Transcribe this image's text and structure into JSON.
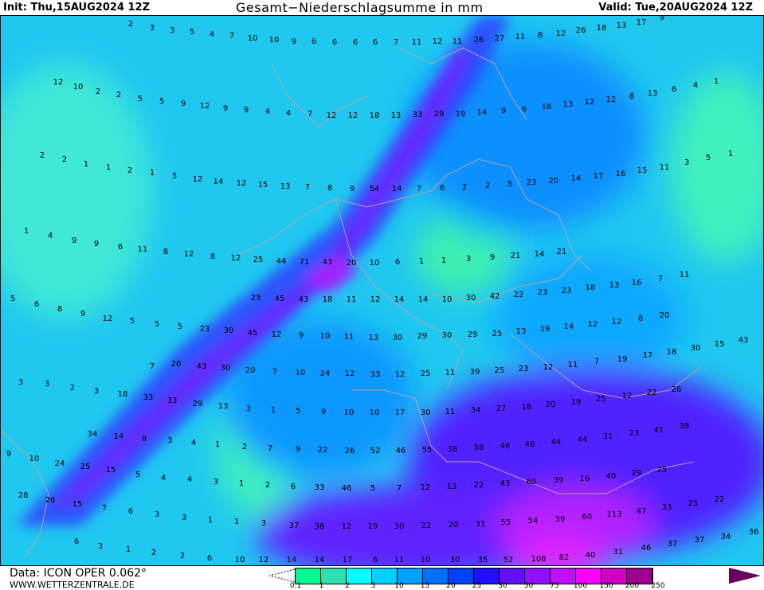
{
  "header": {
    "init": "Init: Thu,15AUG2024 12Z",
    "title": "Gesamt−Niederschlagsumme in mm",
    "valid": "Valid: Tue,20AUG2024 12Z"
  },
  "footer": {
    "data_source": "Data: ICON OPER 0.062°",
    "website": "WWW.WETTERZENTRALE.DE"
  },
  "legend": {
    "unit": "mm",
    "ticks": [
      "0.1",
      "1",
      "2",
      "5",
      "10",
      "15",
      "20",
      "25",
      "30",
      "50",
      "75",
      "100",
      "150",
      "200",
      "250"
    ],
    "colors": [
      "#00f890",
      "#30e0b0",
      "#00ffff",
      "#00d0ff",
      "#00a0ff",
      "#0070ff",
      "#0040ff",
      "#2010ff",
      "#6010ff",
      "#9010ff",
      "#c010ff",
      "#ff00ff",
      "#d000c0",
      "#a00090",
      "#6a0060"
    ]
  },
  "map": {
    "colors": {
      "base": "#20c8f0",
      "green": "#40f0c0",
      "blue": "#1090ff",
      "deep": "#3030ff",
      "purple": "#8020ff",
      "magenta": "#e020ff",
      "borders": "#c8a0a0"
    },
    "labels": [
      "2",
      "3",
      "3",
      "5",
      "4",
      "7",
      "10",
      "10",
      "9",
      "6",
      "6",
      "6",
      "6",
      "7",
      "11",
      "12",
      "11",
      "26",
      "27",
      "11",
      "8",
      "12",
      "26",
      "18",
      "13",
      "17",
      "9",
      "12",
      "10",
      "2",
      "2",
      "5",
      "5",
      "9",
      "12",
      "9",
      "9",
      "4",
      "4",
      "7",
      "12",
      "12",
      "18",
      "13",
      "33",
      "29",
      "19",
      "14",
      "9",
      "6",
      "18",
      "13",
      "12",
      "12",
      "8",
      "13",
      "6",
      "4",
      "1",
      "2",
      "2",
      "1",
      "1",
      "2",
      "1",
      "5",
      "12",
      "14",
      "12",
      "15",
      "13",
      "7",
      "8",
      "9",
      "54",
      "14",
      "7",
      "6",
      "2",
      "2",
      "5",
      "23",
      "20",
      "14",
      "17",
      "16",
      "15",
      "11",
      "3",
      "5",
      "1",
      "1",
      "4",
      "9",
      "9",
      "6",
      "11",
      "8",
      "12",
      "8",
      "12",
      "25",
      "44",
      "71",
      "43",
      "20",
      "10",
      "6",
      "1",
      "1",
      "3",
      "9",
      "21",
      "14",
      "21",
      "5",
      "6",
      "8",
      "9",
      "12",
      "5",
      "5",
      "5",
      "23",
      "30",
      "45",
      "12",
      "9",
      "10",
      "11",
      "13",
      "30",
      "29",
      "30",
      "29",
      "25",
      "13",
      "19",
      "14",
      "12",
      "12",
      "8",
      "20",
      "23",
      "45",
      "43",
      "18",
      "11",
      "12",
      "14",
      "14",
      "10",
      "30",
      "42",
      "22",
      "23",
      "23",
      "18",
      "13",
      "16",
      "7",
      "11",
      "3",
      "3",
      "2",
      "3",
      "18",
      "33",
      "33",
      "29",
      "13",
      "3",
      "1",
      "5",
      "9",
      "10",
      "10",
      "17",
      "30",
      "11",
      "34",
      "27",
      "18",
      "20",
      "19",
      "25",
      "12",
      "22",
      "26",
      "7",
      "20",
      "43",
      "30",
      "20",
      "7",
      "10",
      "24",
      "12",
      "33",
      "12",
      "25",
      "11",
      "39",
      "25",
      "23",
      "12",
      "11",
      "7",
      "19",
      "17",
      "18",
      "30",
      "15",
      "43",
      "9",
      "10",
      "24",
      "25",
      "15",
      "5",
      "4",
      "4",
      "3",
      "1",
      "2",
      "6",
      "33",
      "46",
      "5",
      "7",
      "12",
      "13",
      "22",
      "43",
      "60",
      "39",
      "16",
      "40",
      "29",
      "25",
      "34",
      "14",
      "8",
      "3",
      "4",
      "1",
      "2",
      "7",
      "9",
      "22",
      "26",
      "52",
      "46",
      "55",
      "38",
      "58",
      "46",
      "46",
      "44",
      "44",
      "31",
      "23",
      "41",
      "38",
      "28",
      "26",
      "15",
      "7",
      "6",
      "3",
      "3",
      "1",
      "1",
      "3",
      "37",
      "38",
      "12",
      "19",
      "30",
      "22",
      "20",
      "31",
      "55",
      "54",
      "39",
      "60",
      "113",
      "47",
      "33",
      "25",
      "22",
      "6",
      "3",
      "1",
      "2",
      "2",
      "6",
      "10",
      "12",
      "14",
      "14",
      "17",
      "6",
      "11",
      "10",
      "30",
      "35",
      "52",
      "108",
      "82",
      "40",
      "31",
      "46",
      "37",
      "37",
      "34",
      "36"
    ]
  }
}
